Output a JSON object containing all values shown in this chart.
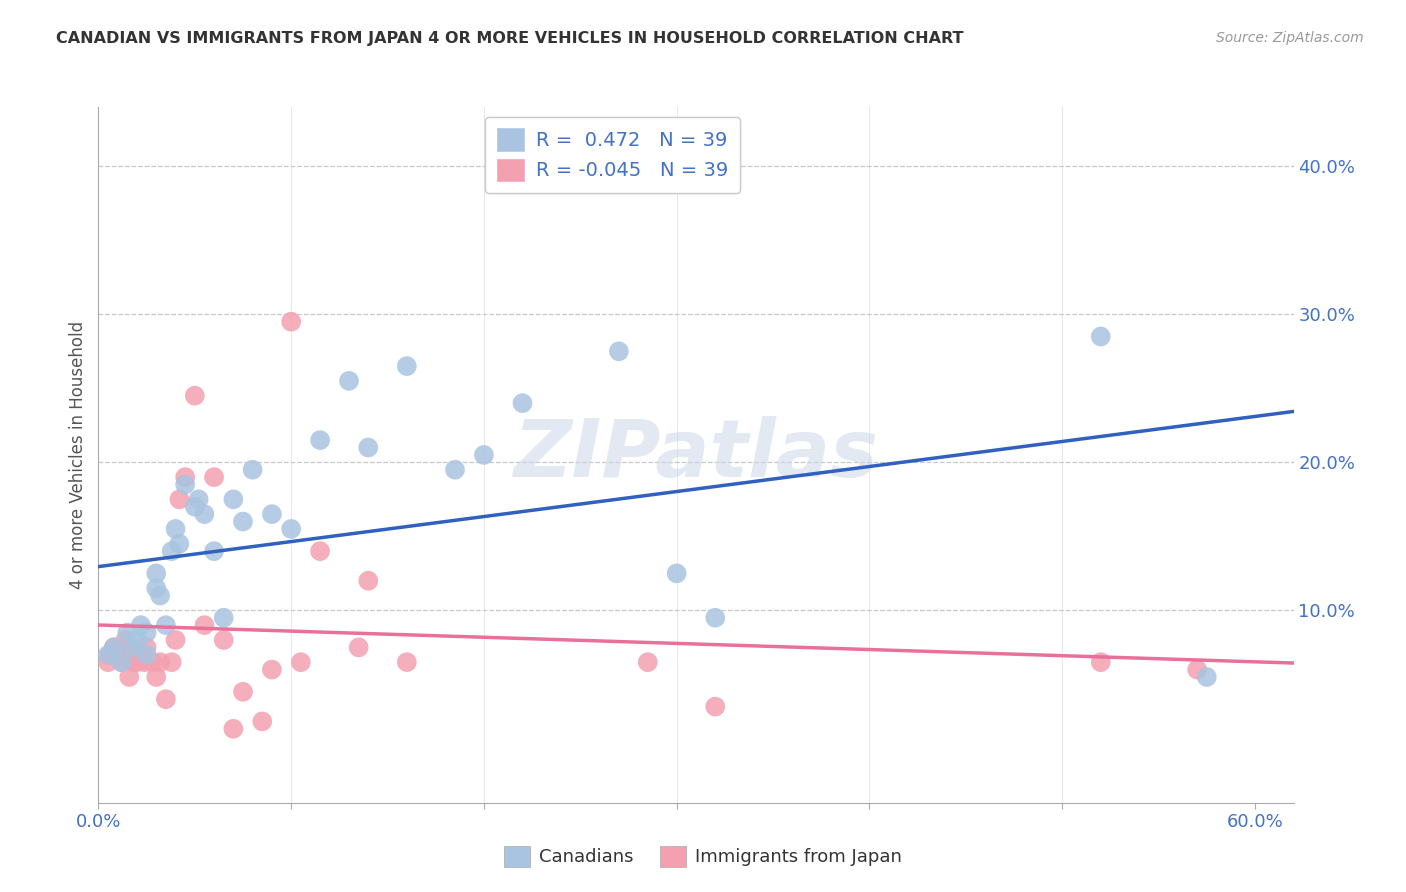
{
  "title": "CANADIAN VS IMMIGRANTS FROM JAPAN 4 OR MORE VEHICLES IN HOUSEHOLD CORRELATION CHART",
  "source": "Source: ZipAtlas.com",
  "tick_color": "#4472c4",
  "ylabel": "4 or more Vehicles in Household",
  "xlim": [
    0.0,
    0.62
  ],
  "ylim": [
    -0.03,
    0.44
  ],
  "xtick_vals": [
    0.0,
    0.1,
    0.2,
    0.3,
    0.4,
    0.5,
    0.6
  ],
  "xticklabels": [
    "0.0%",
    "",
    "",
    "",
    "",
    "",
    "60.0%"
  ],
  "ytick_vals": [
    0.1,
    0.2,
    0.3,
    0.4
  ],
  "yticklabels_right": [
    "10.0%",
    "20.0%",
    "30.0%",
    "40.0%"
  ],
  "canadian_color": "#a8c4e0",
  "japan_color": "#f4a0b0",
  "canadian_line_color": "#3060c0",
  "japan_line_color": "#e8709a",
  "legend_r_canadian": "R =  0.472",
  "legend_n_canadian": "N = 39",
  "legend_r_japan": "R = -0.045",
  "legend_n_japan": "N = 39",
  "watermark": "ZIPatlas",
  "canadians_x": [
    0.005,
    0.008,
    0.012,
    0.015,
    0.018,
    0.02,
    0.022,
    0.025,
    0.025,
    0.03,
    0.03,
    0.032,
    0.035,
    0.038,
    0.04,
    0.042,
    0.045,
    0.05,
    0.052,
    0.055,
    0.06,
    0.065,
    0.07,
    0.075,
    0.08,
    0.09,
    0.1,
    0.115,
    0.13,
    0.14,
    0.16,
    0.185,
    0.2,
    0.22,
    0.27,
    0.3,
    0.32,
    0.52,
    0.575
  ],
  "canadians_y": [
    0.07,
    0.075,
    0.065,
    0.085,
    0.075,
    0.08,
    0.09,
    0.085,
    0.07,
    0.115,
    0.125,
    0.11,
    0.09,
    0.14,
    0.155,
    0.145,
    0.185,
    0.17,
    0.175,
    0.165,
    0.14,
    0.095,
    0.175,
    0.16,
    0.195,
    0.165,
    0.155,
    0.215,
    0.255,
    0.21,
    0.265,
    0.195,
    0.205,
    0.24,
    0.275,
    0.125,
    0.095,
    0.285,
    0.055
  ],
  "japan_x": [
    0.005,
    0.006,
    0.008,
    0.01,
    0.012,
    0.014,
    0.015,
    0.016,
    0.018,
    0.02,
    0.022,
    0.024,
    0.025,
    0.028,
    0.03,
    0.032,
    0.035,
    0.038,
    0.04,
    0.042,
    0.045,
    0.05,
    0.055,
    0.06,
    0.065,
    0.07,
    0.075,
    0.085,
    0.09,
    0.1,
    0.105,
    0.115,
    0.135,
    0.14,
    0.16,
    0.285,
    0.32,
    0.52,
    0.57
  ],
  "japan_y": [
    0.065,
    0.07,
    0.075,
    0.07,
    0.065,
    0.08,
    0.075,
    0.055,
    0.065,
    0.065,
    0.07,
    0.065,
    0.075,
    0.065,
    0.055,
    0.065,
    0.04,
    0.065,
    0.08,
    0.175,
    0.19,
    0.245,
    0.09,
    0.19,
    0.08,
    0.02,
    0.045,
    0.025,
    0.06,
    0.295,
    0.065,
    0.14,
    0.075,
    0.12,
    0.065,
    0.065,
    0.035,
    0.065,
    0.06
  ]
}
